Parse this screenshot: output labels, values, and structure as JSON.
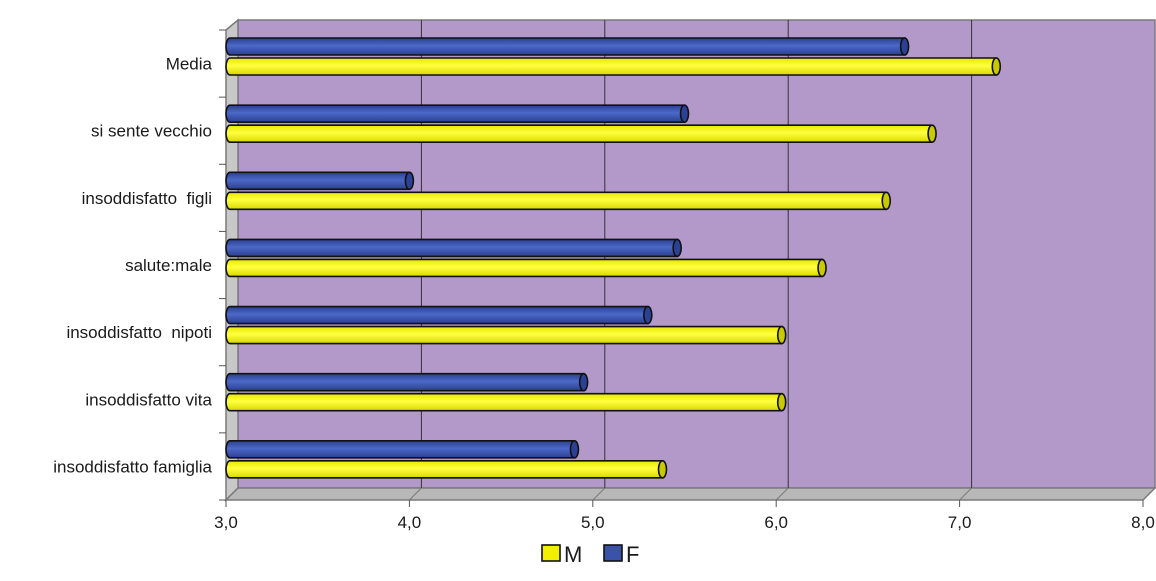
{
  "chart_data": {
    "type": "bar",
    "orientation": "horizontal",
    "categories": [
      "Media",
      "si sente vecchio",
      "insoddisfatto  figli",
      "salute:male",
      "insoddisfatto  nipoti",
      "insoddisfatto vita",
      "insoddisfatto famiglia"
    ],
    "series": [
      {
        "name": "F",
        "values": [
          6.7,
          5.5,
          4.0,
          5.46,
          5.3,
          4.95,
          4.9
        ],
        "color": "#3a52a8"
      },
      {
        "name": "M",
        "values": [
          7.2,
          6.85,
          6.6,
          6.25,
          6.03,
          6.03,
          5.38
        ],
        "color": "#f0f000"
      }
    ],
    "xlim": [
      3.0,
      8.0
    ],
    "x_ticks": [
      "3,0",
      "4,0",
      "5,0",
      "6,0",
      "7,0",
      "8,0"
    ],
    "grid": "vertical",
    "legend": {
      "position": "bottom",
      "items": [
        {
          "label": "M",
          "color": "#f0f000"
        },
        {
          "label": "F",
          "color": "#3a52a8"
        }
      ]
    },
    "plot_background": "#b399c9",
    "title": "",
    "xlabel": "",
    "ylabel": ""
  }
}
